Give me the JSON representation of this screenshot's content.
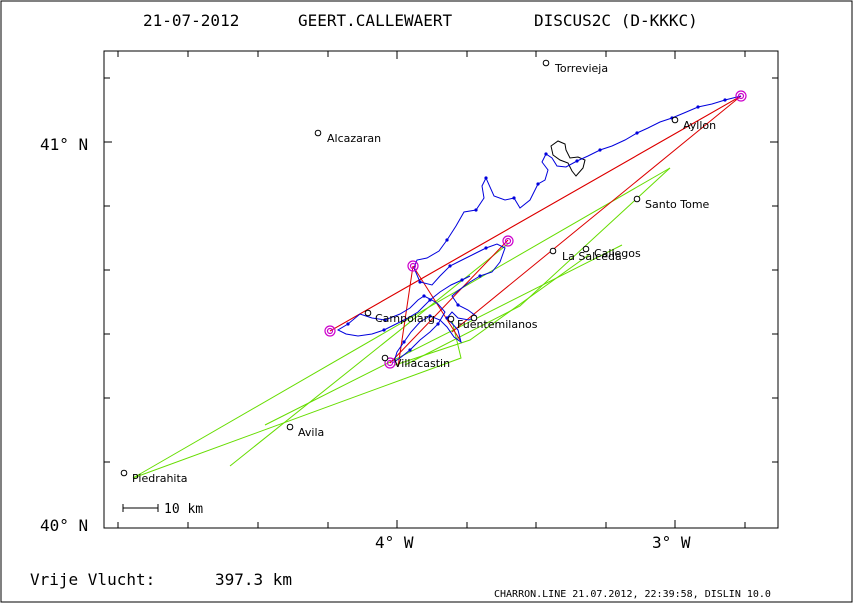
{
  "header": {
    "date": "21-07-2012",
    "pilot": "GEERT.CALLEWAERT",
    "glider": "DISCUS2C (D-KKKC)"
  },
  "axes": {
    "lat_labels": [
      {
        "id": "lat41",
        "text": "41° N"
      },
      {
        "id": "lat40",
        "text": "40° N"
      }
    ],
    "lon_labels": [
      {
        "id": "lon4",
        "text": "4° W"
      },
      {
        "id": "lon3",
        "text": "3° W"
      }
    ]
  },
  "places": [
    {
      "name": "Torrevieja"
    },
    {
      "name": "Alcazaran"
    },
    {
      "name": "Ayllon"
    },
    {
      "name": "Santo Tome"
    },
    {
      "name": "Callegos"
    },
    {
      "name": "La Salceda"
    },
    {
      "name": "Campolarg"
    },
    {
      "name": "Fuentemilanos"
    },
    {
      "name": "Villacastin"
    },
    {
      "name": "Avila"
    },
    {
      "name": "Piedrahita"
    }
  ],
  "scale": {
    "label": "10 km"
  },
  "footer": {
    "distance_label": "Vrije Vlucht:",
    "distance_value": "397.3 km",
    "credit": "CHARRON.LINE 21.07.2012, 22:39:58, DISLIN 10.0"
  },
  "colors": {
    "track": "#0000dd",
    "task": "#dd0000",
    "alt_legs": "#66dd00",
    "turnpoint": "#cc00cc",
    "ink": "#000000"
  }
}
